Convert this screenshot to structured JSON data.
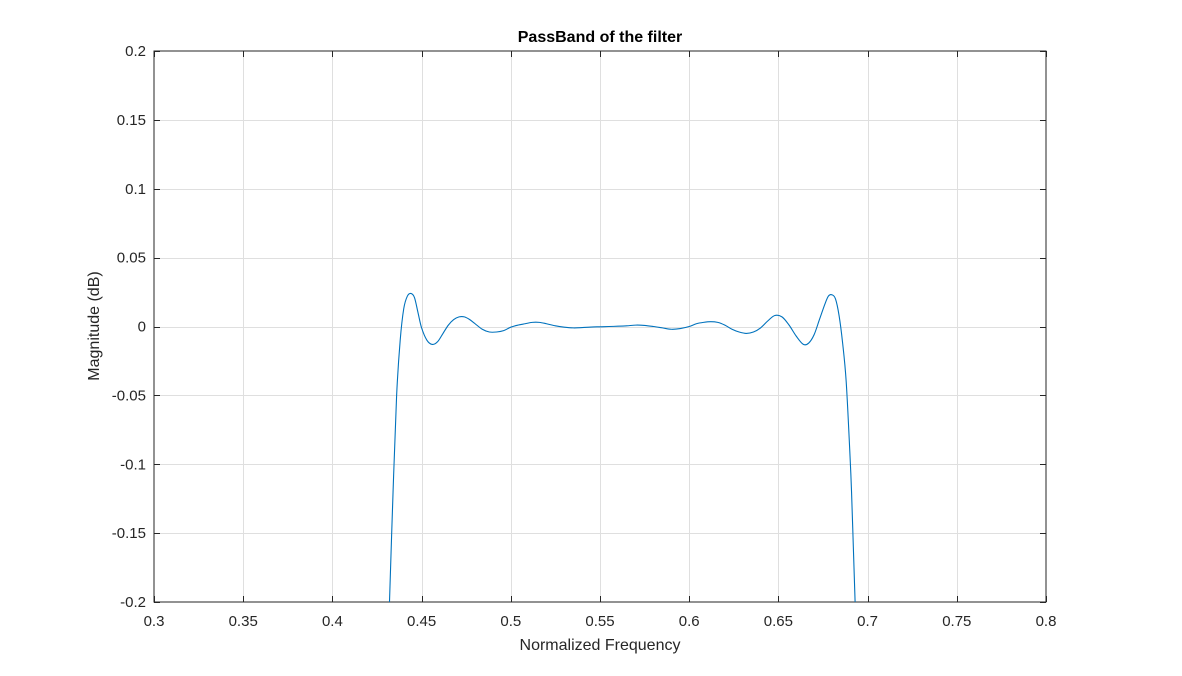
{
  "chart_data": {
    "type": "line",
    "title": "PassBand of the filter",
    "xlabel": "Normalized Frequency",
    "ylabel": "Magnitude (dB)",
    "xlim": [
      0.3,
      0.8
    ],
    "ylim": [
      -0.2,
      0.2
    ],
    "grid": true,
    "xticks": [
      0.3,
      0.35,
      0.4,
      0.45,
      0.5,
      0.55,
      0.6,
      0.65,
      0.7,
      0.75,
      0.8
    ],
    "xtick_labels": [
      "0.3",
      "0.35",
      "0.4",
      "0.45",
      "0.5",
      "0.55",
      "0.6",
      "0.65",
      "0.7",
      "0.75",
      "0.8"
    ],
    "yticks": [
      0.2,
      0.15,
      0.1,
      0.05,
      0,
      -0.05,
      -0.1,
      -0.15,
      -0.2
    ],
    "ytick_labels": [
      "0.2",
      "0.15",
      "0.1",
      "0.05",
      "0",
      "-0.05",
      "-0.1",
      "-0.15",
      "-0.2"
    ],
    "series": [
      {
        "color": "#0072BD",
        "x": [
          0.432,
          0.434,
          0.436,
          0.438,
          0.44,
          0.442,
          0.444,
          0.446,
          0.448,
          0.45,
          0.453,
          0.456,
          0.459,
          0.462,
          0.465,
          0.468,
          0.471,
          0.474,
          0.477,
          0.48,
          0.484,
          0.488,
          0.492,
          0.496,
          0.5,
          0.504,
          0.508,
          0.512,
          0.516,
          0.52,
          0.525,
          0.53,
          0.535,
          0.54,
          0.545,
          0.55,
          0.555,
          0.56,
          0.565,
          0.57,
          0.575,
          0.58,
          0.585,
          0.59,
          0.595,
          0.6,
          0.604,
          0.608,
          0.612,
          0.616,
          0.62,
          0.624,
          0.628,
          0.632,
          0.636,
          0.64,
          0.644,
          0.648,
          0.652,
          0.656,
          0.66,
          0.664,
          0.667,
          0.67,
          0.673,
          0.676,
          0.678,
          0.68,
          0.682,
          0.684,
          0.686,
          0.688,
          0.69,
          0.691,
          0.692,
          0.693
        ],
        "y": [
          -0.2,
          -0.12,
          -0.05,
          -0.01,
          0.013,
          0.022,
          0.024,
          0.021,
          0.01,
          -0.001,
          -0.01,
          -0.013,
          -0.011,
          -0.005,
          0.001,
          0.005,
          0.007,
          0.007,
          0.005,
          0.002,
          -0.002,
          -0.004,
          -0.004,
          -0.003,
          -0.0005,
          0.001,
          0.002,
          0.003,
          0.003,
          0.002,
          0.0005,
          -0.0005,
          -0.001,
          -0.0008,
          -0.0004,
          -0.0002,
          0.0,
          0.0002,
          0.0005,
          0.001,
          0.0008,
          0.0,
          -0.001,
          -0.002,
          -0.0015,
          0.0,
          0.002,
          0.003,
          0.0035,
          0.003,
          0.001,
          -0.002,
          -0.004,
          -0.005,
          -0.004,
          -0.001,
          0.004,
          0.008,
          0.007,
          0.001,
          -0.007,
          -0.013,
          -0.012,
          -0.006,
          0.005,
          0.016,
          0.022,
          0.023,
          0.02,
          0.008,
          -0.012,
          -0.04,
          -0.09,
          -0.12,
          -0.16,
          -0.2
        ]
      }
    ]
  }
}
